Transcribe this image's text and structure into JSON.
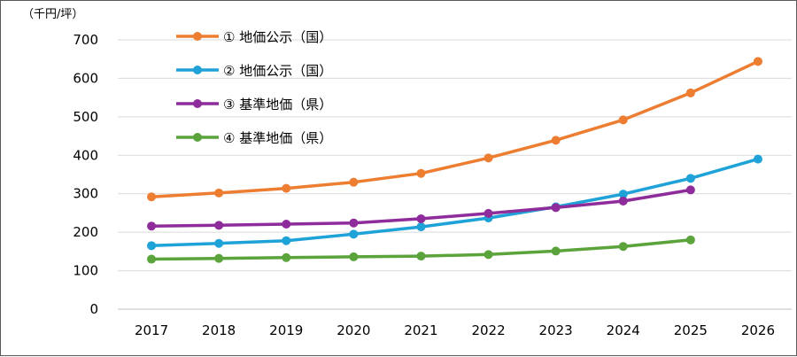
{
  "chart_data": {
    "type": "line",
    "unit_label": "（千円/坪）",
    "x": [
      "2017",
      "2018",
      "2019",
      "2020",
      "2021",
      "2022",
      "2023",
      "2024",
      "2025",
      "2026"
    ],
    "ylim": [
      0,
      700
    ],
    "yticks": [
      "0",
      "100",
      "200",
      "300",
      "400",
      "500",
      "600",
      "700"
    ],
    "grid": true,
    "legend_position": "top-left",
    "series": [
      {
        "name": "① 地価公示（国）",
        "color": "#ED7D31",
        "values": [
          292,
          302,
          314,
          330,
          353,
          393,
          439,
          492,
          562,
          644
        ]
      },
      {
        "name": "② 地価公示（国）",
        "color": "#1FA2D8",
        "values": [
          165,
          171,
          178,
          195,
          214,
          237,
          266,
          299,
          340,
          390
        ]
      },
      {
        "name": "③ 基準地価（県）",
        "color": "#8E2C9B",
        "values": [
          216,
          218,
          221,
          224,
          235,
          249,
          264,
          281,
          310,
          null
        ]
      },
      {
        "name": "④ 基準地価（県）",
        "color": "#5BA33B",
        "values": [
          130,
          132,
          134,
          136,
          138,
          142,
          151,
          163,
          180,
          null
        ]
      }
    ]
  }
}
